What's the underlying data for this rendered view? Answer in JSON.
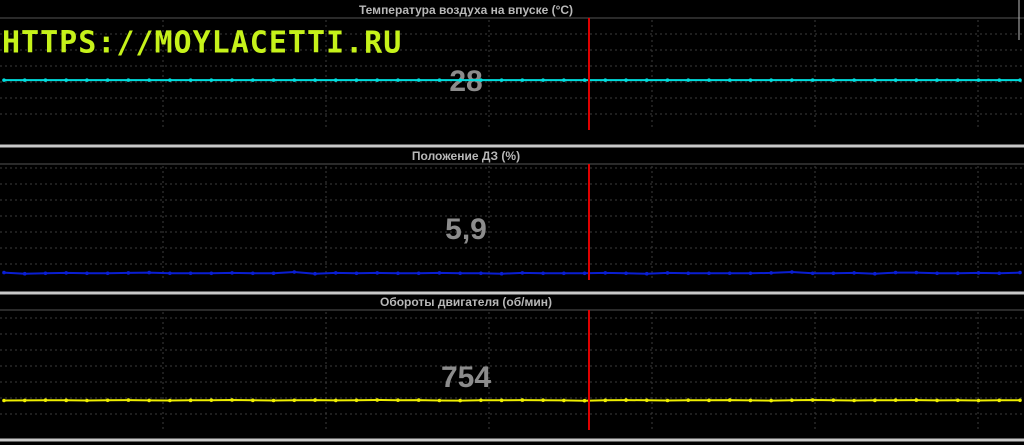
{
  "watermark": "HTTPS://MOYLACETTI.RU",
  "chart_data": [
    {
      "type": "line",
      "title": "Температура воздуха на впуске  (°C)",
      "current": "28",
      "ylim": [
        -40,
        110
      ],
      "grid": true,
      "series": [
        {
          "color": "#00dede",
          "values": [
            28,
            28,
            28,
            28,
            28,
            28,
            28,
            28,
            28,
            28,
            28,
            28,
            28,
            28,
            28,
            28,
            28,
            28,
            28,
            28,
            28,
            28,
            28,
            28,
            28,
            28,
            28,
            28,
            28,
            28,
            28,
            28,
            28,
            28,
            28,
            28,
            28,
            28,
            28,
            28,
            28,
            28,
            28,
            28,
            28,
            28,
            28,
            28,
            28,
            28
          ]
        }
      ]
    },
    {
      "type": "line",
      "title": "Положение ДЗ  (%)",
      "current": "5,9",
      "ylim": [
        0,
        100
      ],
      "grid": true,
      "series": [
        {
          "color": "#0a1ed2",
          "values": [
            6.5,
            5.5,
            5.9,
            6.2,
            5.9,
            5.9,
            6.2,
            6.5,
            5.9,
            5.9,
            5.9,
            6.2,
            5.9,
            5.9,
            7.0,
            5.5,
            6.2,
            5.9,
            6.2,
            5.9,
            5.9,
            6.2,
            5.9,
            5.9,
            5.5,
            6.2,
            5.9,
            5.9,
            5.9,
            6.2,
            5.9,
            5.5,
            6.2,
            5.9,
            5.9,
            5.9,
            5.9,
            6.2,
            7.0,
            5.9,
            5.9,
            6.2,
            5.5,
            6.5,
            6.5,
            5.9,
            5.9,
            6.2,
            5.9,
            6.5
          ]
        }
      ]
    },
    {
      "type": "line",
      "title": "Обороты двигателя  (об/мин)",
      "current": "754",
      "ylim": [
        0,
        3000
      ],
      "grid": true,
      "series": [
        {
          "color": "#eeee00",
          "values": [
            750,
            752,
            758,
            754,
            750,
            756,
            760,
            752,
            750,
            754,
            758,
            762,
            754,
            750,
            756,
            760,
            752,
            756,
            762,
            758,
            760,
            750,
            748,
            756,
            754,
            760,
            758,
            752,
            746,
            754,
            760,
            756,
            750,
            758,
            754,
            760,
            752,
            748,
            756,
            762,
            758,
            750,
            754,
            758,
            760,
            752,
            756,
            750,
            754,
            756
          ]
        }
      ]
    }
  ]
}
